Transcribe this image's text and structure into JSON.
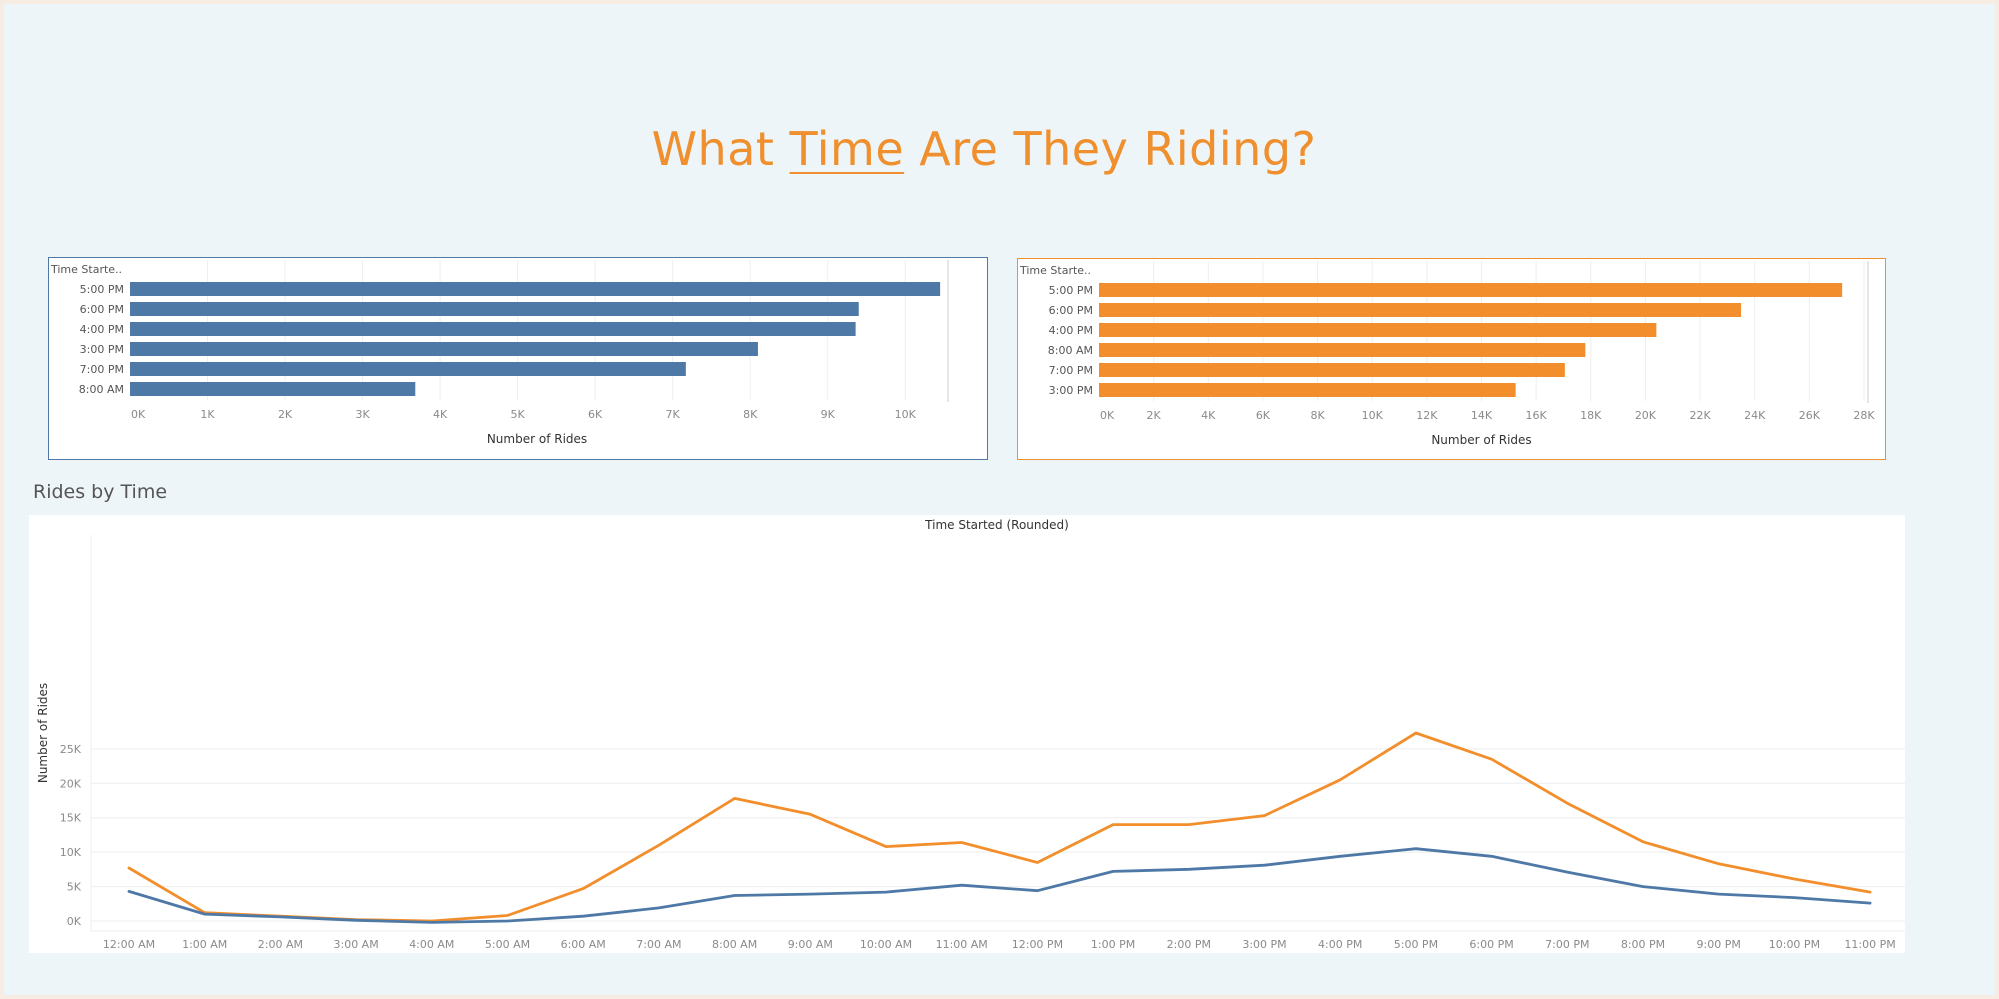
{
  "title": {
    "pre": "What ",
    "highlight": "Time",
    "post": " Are They Riding?"
  },
  "section_title": "Rides by Time",
  "colors": {
    "blue": "#4e79a7",
    "orange": "#f28e2b",
    "title_orange": "#ef8f2d"
  },
  "chart_data": [
    {
      "type": "bar",
      "orientation": "horizontal",
      "color": "#4e79a7",
      "row_header": "Time Starte..",
      "categories": [
        "5:00 PM",
        "6:00 PM",
        "4:00 PM",
        "3:00 PM",
        "7:00 PM",
        "8:00 AM"
      ],
      "values": [
        10450,
        9400,
        9360,
        8100,
        7170,
        3680
      ],
      "xlabel": "Number of Rides",
      "xlim": [
        0,
        10500
      ],
      "ticks": [
        "0K",
        "1K",
        "2K",
        "3K",
        "4K",
        "5K",
        "6K",
        "7K",
        "8K",
        "9K",
        "10K"
      ],
      "tick_values": [
        0,
        1000,
        2000,
        3000,
        4000,
        5000,
        6000,
        7000,
        8000,
        9000,
        10000
      ],
      "grid": true
    },
    {
      "type": "bar",
      "orientation": "horizontal",
      "color": "#f28e2b",
      "row_header": "Time Starte..",
      "categories": [
        "5:00 PM",
        "6:00 PM",
        "4:00 PM",
        "8:00 AM",
        "7:00 PM",
        "3:00 PM"
      ],
      "values": [
        27200,
        23500,
        20400,
        17800,
        17050,
        15250
      ],
      "xlabel": "Number of Rides",
      "xlim": [
        0,
        28000
      ],
      "ticks": [
        "0K",
        "2K",
        "4K",
        "6K",
        "8K",
        "10K",
        "12K",
        "14K",
        "16K",
        "18K",
        "20K",
        "22K",
        "24K",
        "26K",
        "28K"
      ],
      "tick_values": [
        0,
        2000,
        4000,
        6000,
        8000,
        10000,
        12000,
        14000,
        16000,
        18000,
        20000,
        22000,
        24000,
        26000,
        28000
      ],
      "grid": true
    },
    {
      "type": "line",
      "title": "Time Started (Rounded)",
      "ylabel": "Number of Rides",
      "x": [
        "12:00 AM",
        "1:00 AM",
        "2:00 AM",
        "3:00 AM",
        "4:00 AM",
        "5:00 AM",
        "6:00 AM",
        "7:00 AM",
        "8:00 AM",
        "9:00 AM",
        "10:00 AM",
        "11:00 AM",
        "12:00 PM",
        "1:00 PM",
        "2:00 PM",
        "3:00 PM",
        "4:00 PM",
        "5:00 PM",
        "6:00 PM",
        "7:00 PM",
        "8:00 PM",
        "9:00 PM",
        "10:00 PM",
        "11:00 PM"
      ],
      "series": [
        {
          "color": "#f28e2b",
          "values": [
            7700,
            1200,
            700,
            200,
            0,
            800,
            4700,
            11000,
            17800,
            15500,
            10800,
            11400,
            8500,
            14000,
            14000,
            15300,
            20500,
            27300,
            23500,
            17100,
            11500,
            8300,
            6100,
            4200
          ]
        },
        {
          "color": "#4e79a7",
          "values": [
            4300,
            1000,
            600,
            100,
            -200,
            0,
            700,
            1900,
            3700,
            3900,
            4200,
            5200,
            4400,
            7200,
            7500,
            8100,
            9400,
            10500,
            9400,
            7100,
            5000,
            3900,
            3400,
            2600
          ]
        }
      ],
      "ylim": [
        -600,
        28500
      ],
      "ytick_values": [
        0,
        5000,
        10000,
        15000,
        20000,
        25000
      ],
      "yticks": [
        "0K",
        "5K",
        "10K",
        "15K",
        "20K",
        "25K"
      ],
      "grid": true
    }
  ]
}
